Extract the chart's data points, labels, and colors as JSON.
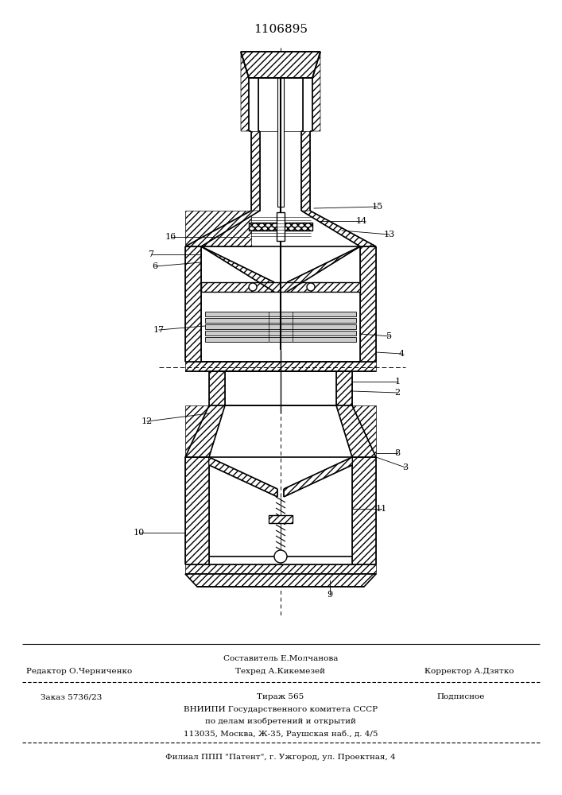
{
  "patent_number": "1106895",
  "bg": "#ffffff",
  "footer_composer": "Составитель Е.Молчанова",
  "footer_editor": "Редактор О.Черниченко",
  "footer_tehred": "Техред А.Кикемезей",
  "footer_corrector": "Корректор А.Дзятко",
  "footer_zakaz": "Заказ 5736/23",
  "footer_tirazh": "Тираж 565",
  "footer_podpisnoe": "Подписное",
  "footer_vniiipi": "ВНИИПИ Государственного комитета СССР",
  "footer_po_delam": "по делам изобретений и открытий",
  "footer_address": "113035, Москва, Ж-35, Раушская наб., д. 4/5",
  "footer_filial": "Филиал ППП \"Патент\", г. Ужгород, ул. Проектная, 4"
}
